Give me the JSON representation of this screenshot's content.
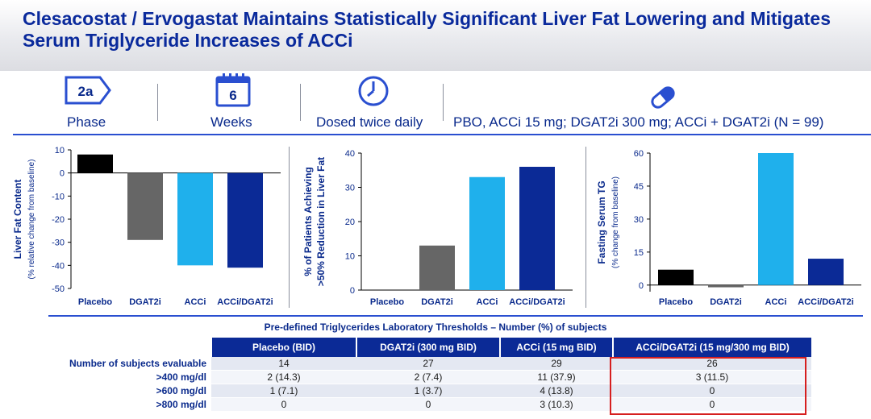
{
  "title": "Clesacostat / Ervogastat Maintains Statistically Significant Liver Fat Lowering and Mitigates Serum Triglyceride Increases of ACCi",
  "infobar": {
    "phase_value": "2a",
    "phase_label": "Phase",
    "weeks_value": "6",
    "weeks_label": "Weeks",
    "dosing_label": "Dosed twice daily",
    "treatment_label": "PBO, ACCi 15 mg; DGAT2i 300 mg; ACCi + DGAT2i (N = 99)"
  },
  "colors": {
    "placebo": "#000000",
    "dgat2i": "#666666",
    "acci": "#1fb0ec",
    "combo": "#0b2a96",
    "text": "#0a2a8c"
  },
  "chart_data": [
    {
      "type": "bar",
      "categories": [
        "Placebo",
        "DGAT2i",
        "ACCi",
        "ACCi/DGAT2i"
      ],
      "values": [
        8,
        -29,
        -40,
        -41
      ],
      "ylabel_main": "Liver Fat Content",
      "ylabel_sub": "(% relative change from baseline)",
      "ylim": [
        -50,
        10
      ],
      "yticks": [
        10,
        0,
        -10,
        -20,
        -30,
        -40,
        -50
      ],
      "grid": false
    },
    {
      "type": "bar",
      "categories": [
        "Placebo",
        "DGAT2i",
        "ACCi",
        "ACCi/DGAT2i"
      ],
      "values": [
        0,
        13,
        33,
        36
      ],
      "ylabel_main": "% of Patients Achieving",
      "ylabel_sub": ">50% Reduction in Liver Fat",
      "ylim": [
        0,
        40
      ],
      "yticks": [
        0,
        10,
        20,
        30,
        40
      ],
      "grid": false
    },
    {
      "type": "bar",
      "categories": [
        "Placebo",
        "DGAT2i",
        "ACCi",
        "ACCi/DGAT2i"
      ],
      "values": [
        7,
        -1,
        60,
        12
      ],
      "ylabel_main": "Fasting Serum TG",
      "ylabel_sub": "(% change from baseline)",
      "ylim": [
        -3,
        60
      ],
      "yticks": [
        0,
        15,
        30,
        45,
        60
      ],
      "grid": false
    }
  ],
  "table": {
    "title": "Pre-defined Triglycerides Laboratory Thresholds – Number (%) of subjects",
    "columns": [
      "",
      "Placebo (BID)",
      "DGAT2i (300 mg BID)",
      "ACCi (15 mg BID)",
      "ACCi/DGAT2i (15 mg/300 mg BID)"
    ],
    "rows": [
      [
        "Number of subjects evaluable",
        "14",
        "27",
        "29",
        "26"
      ],
      [
        ">400 mg/dl",
        "2 (14.3)",
        "2 (7.4)",
        "11 (37.9)",
        "3 (11.5)"
      ],
      [
        ">600 mg/dl",
        "1 (7.1)",
        "1 (3.7)",
        "4 (13.8)",
        "0"
      ],
      [
        ">800 mg/dl",
        "0",
        "0",
        "3 (10.3)",
        "0"
      ]
    ]
  }
}
